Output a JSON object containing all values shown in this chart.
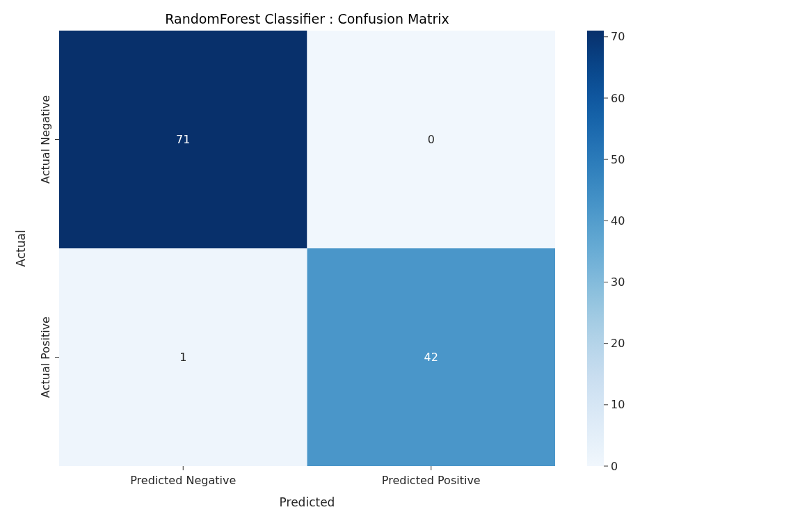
{
  "chart_data": {
    "type": "heatmap",
    "title": "RandomForest Classifier : Confusion Matrix",
    "xlabel": "Predicted",
    "ylabel": "Actual",
    "categories": [
      "Predicted Negative",
      "Predicted Positive"
    ],
    "y_categories": [
      "Actual Negative",
      "Actual Positive"
    ],
    "cells": [
      [
        71,
        0
      ],
      [
        1,
        42
      ]
    ],
    "clim": [
      0,
      71
    ],
    "cticks": [
      0,
      10,
      20,
      30,
      40,
      50,
      60,
      70
    ],
    "data_labels": true
  }
}
